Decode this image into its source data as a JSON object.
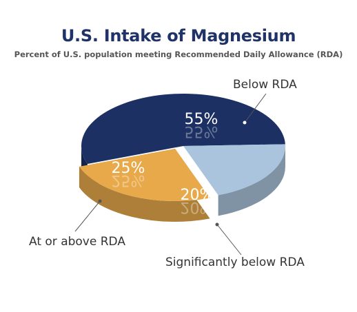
{
  "chart_data": {
    "type": "pie",
    "title": "U.S. Intake of Magnesium",
    "subtitle": "Percent of U.S. population meeting Recommended Daily Allowance (RDA)",
    "slices": [
      {
        "label": "Below RDA",
        "value": 55,
        "display": "55%",
        "color": "#1c3064"
      },
      {
        "label": "Significantly below RDA",
        "value": 20,
        "display": "20%",
        "color": "#a9c4dc"
      },
      {
        "label": "At or above RDA",
        "value": 25,
        "display": "25%",
        "color": "#e8a94b"
      }
    ],
    "legend": "none"
  }
}
